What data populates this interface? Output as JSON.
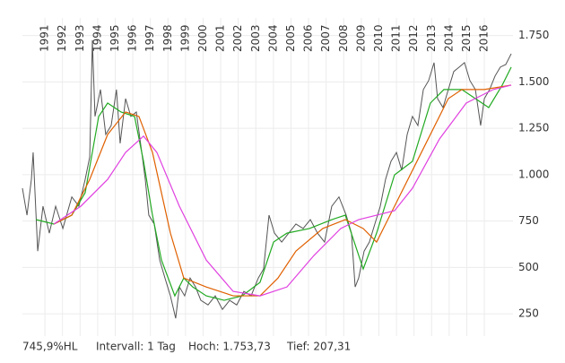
{
  "chart_data": {
    "type": "line",
    "xlim": [
      1989.72,
      2017.63
    ],
    "xticks": [
      1991,
      1992,
      1993,
      1994,
      1995,
      1996,
      1997,
      1998,
      1999,
      2000,
      2001,
      2002,
      2003,
      2004,
      2005,
      2006,
      2007,
      2008,
      2009,
      2010,
      2011,
      2012,
      2013,
      2014,
      2015,
      2016
    ],
    "ylim": [
      130,
      1845
    ],
    "yticks": [
      {
        "value": 1750,
        "label": "1.750"
      },
      {
        "value": 1500,
        "label": "1.500"
      },
      {
        "value": 1250,
        "label": "1.250"
      },
      {
        "value": 1000,
        "label": "1.000"
      },
      750,
      500,
      250
    ],
    "grid": true,
    "series": [
      {
        "color": "#555555",
        "x": [
          1989.72,
          1989.98,
          1990.23,
          1990.33,
          1990.59,
          1990.89,
          1991.25,
          1991.61,
          1992.02,
          1992.53,
          1992.93,
          1993.29,
          1993.55,
          1993.7,
          1993.85,
          1994.16,
          1994.46,
          1994.77,
          1995.07,
          1995.28,
          1995.59,
          1995.89,
          1996.2,
          1996.51,
          1996.71,
          1996.91,
          1997.22,
          1997.53,
          1997.83,
          1998.14,
          1998.44,
          1998.65,
          1998.95,
          1999.26,
          1999.57,
          1999.87,
          2000.28,
          2000.69,
          2001.1,
          2001.51,
          2001.91,
          2002.32,
          2002.73,
          2003.14,
          2003.44,
          2003.75,
          2004.06,
          2004.47,
          2004.87,
          2005.28,
          2005.69,
          2006.1,
          2006.51,
          2006.91,
          2007.32,
          2007.73,
          2008.14,
          2008.44,
          2008.65,
          2008.85,
          2009.16,
          2009.46,
          2009.77,
          2010.08,
          2010.38,
          2010.69,
          2011.0,
          2011.3,
          2011.61,
          2011.91,
          2012.22,
          2012.53,
          2012.83,
          2013.14,
          2013.34,
          2013.65,
          2013.95,
          2014.26,
          2014.57,
          2014.87,
          2015.18,
          2015.49,
          2015.79,
          2016.0,
          2016.3,
          2016.61,
          2016.91,
          2017.22,
          2017.53
        ],
        "values": [
          927,
          782,
          975,
          1120,
          588,
          830,
          685,
          830,
          710,
          880,
          830,
          975,
          1096,
          1725,
          1314,
          1459,
          1217,
          1265,
          1459,
          1169,
          1410,
          1314,
          1338,
          1120,
          975,
          782,
          734,
          540,
          443,
          347,
          226,
          395,
          347,
          443,
          395,
          323,
          298,
          347,
          274,
          323,
          298,
          371,
          347,
          443,
          492,
          782,
          685,
          637,
          685,
          734,
          710,
          758,
          685,
          637,
          830,
          880,
          782,
          685,
          395,
          443,
          588,
          637,
          734,
          830,
          975,
          1072,
          1120,
          1024,
          1217,
          1314,
          1265,
          1459,
          1507,
          1604,
          1410,
          1362,
          1459,
          1556,
          1580,
          1604,
          1507,
          1459,
          1265,
          1410,
          1459,
          1532,
          1580,
          1594,
          1652
        ]
      },
      {
        "color": "#22aa22",
        "x": [
          1990.49,
          1991.51,
          1992.53,
          1993.29,
          1994.06,
          1994.57,
          1995.33,
          1996.1,
          1996.61,
          1997.12,
          1997.63,
          1998.39,
          1998.9,
          1999.41,
          2000.18,
          2001.2,
          2002.22,
          2003.24,
          2004.01,
          2004.77,
          2006.05,
          2007.32,
          2008.09,
          2008.6,
          2009.11,
          2009.87,
          2010.89,
          2011.91,
          2012.93,
          2013.7,
          2014.72,
          2015.49,
          2016.25,
          2017.02,
          2017.53
        ],
        "values": [
          758,
          734,
          782,
          903,
          1314,
          1386,
          1338,
          1314,
          1072,
          782,
          540,
          347,
          443,
          395,
          347,
          323,
          347,
          420,
          637,
          685,
          710,
          758,
          782,
          637,
          492,
          685,
          999,
          1072,
          1386,
          1459,
          1459,
          1410,
          1362,
          1483,
          1580
        ]
      },
      {
        "color": "#e06000",
        "x": [
          1991.51,
          1992.53,
          1993.55,
          1994.57,
          1995.59,
          1996.35,
          1997.12,
          1998.14,
          1998.9,
          2000.18,
          2001.71,
          2003.24,
          2004.26,
          2005.28,
          2006.81,
          2008.09,
          2009.11,
          2009.87,
          2010.89,
          2012.42,
          2013.95,
          2014.72,
          2016.0,
          2017.53
        ],
        "values": [
          734,
          782,
          975,
          1217,
          1338,
          1314,
          1120,
          685,
          443,
          395,
          347,
          347,
          443,
          588,
          710,
          758,
          710,
          637,
          830,
          1120,
          1410,
          1459,
          1459,
          1483
        ]
      },
      {
        "color": "#e040e0",
        "x": [
          1991.51,
          1993.04,
          1994.57,
          1995.59,
          1996.61,
          1997.37,
          1998.65,
          2000.18,
          2001.71,
          2003.24,
          2004.77,
          2006.3,
          2007.83,
          2008.85,
          2009.87,
          2010.89,
          2011.91,
          2013.45,
          2014.97,
          2016.51,
          2017.53
        ],
        "values": [
          734,
          830,
          975,
          1120,
          1208,
          1120,
          830,
          540,
          371,
          347,
          395,
          564,
          710,
          758,
          782,
          806,
          927,
          1193,
          1386,
          1459,
          1483
        ]
      }
    ],
    "footer": [
      "745,9%HL",
      "Intervall: 1 Tag",
      "Hoch: 1.753,73",
      "Tief: 207,31"
    ]
  }
}
